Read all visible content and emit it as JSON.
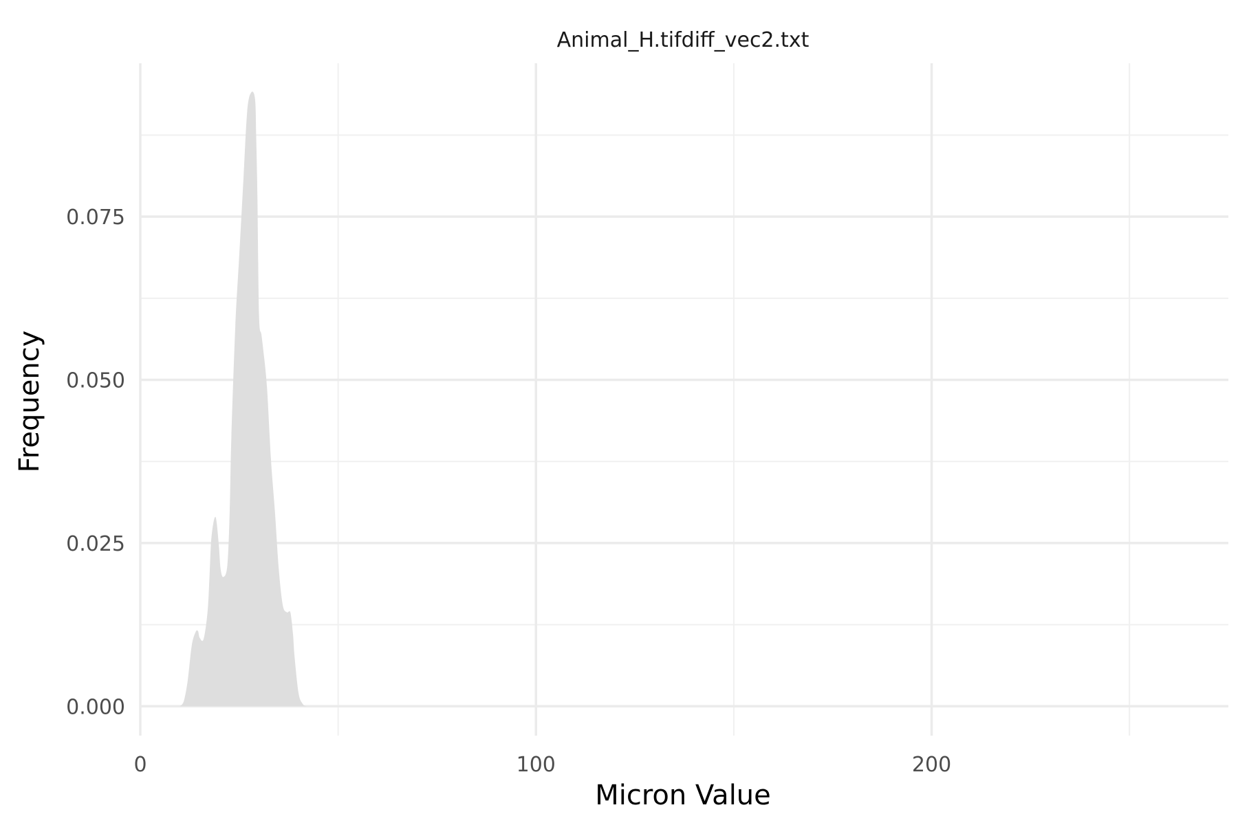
{
  "chart_data": {
    "type": "area",
    "title": "Animal_H.tifdiff_vec2.txt",
    "xlabel": "Micron Value",
    "ylabel": "Frequency",
    "xlim": [
      0,
      275
    ],
    "ylim": [
      -0.0045,
      0.0985
    ],
    "x_ticks": [
      0,
      100,
      200
    ],
    "x_tick_labels": [
      "0",
      "100",
      "200"
    ],
    "x_minor_ticks": [
      50,
      150,
      250
    ],
    "y_ticks": [
      0.0,
      0.025,
      0.05,
      0.075
    ],
    "y_tick_labels": [
      "0.000",
      "0.025",
      "0.050",
      "0.075"
    ],
    "y_minor_ticks": [
      0.0125,
      0.0375,
      0.0625,
      0.0875
    ],
    "grid": true,
    "fill_color": "#dedede",
    "series": [
      {
        "x": [
          10,
          11,
          12,
          13,
          14,
          14.6,
          15,
          16,
          17,
          17.5,
          18,
          19,
          19.8,
          20.3,
          21,
          22,
          22.6,
          23,
          24,
          25,
          26,
          27,
          28,
          29,
          29.3,
          29.6,
          30,
          30.6,
          31,
          32,
          33,
          34,
          35,
          36,
          37,
          37.5,
          38,
          38.6,
          39,
          40,
          41,
          42,
          43
        ],
        "y": [
          0.0,
          0.0008,
          0.004,
          0.0093,
          0.0114,
          0.0115,
          0.0105,
          0.0103,
          0.0145,
          0.02,
          0.026,
          0.029,
          0.025,
          0.021,
          0.0198,
          0.0216,
          0.03,
          0.041,
          0.058,
          0.069,
          0.08,
          0.091,
          0.094,
          0.093,
          0.087,
          0.078,
          0.06,
          0.057,
          0.055,
          0.049,
          0.038,
          0.03,
          0.021,
          0.0155,
          0.0144,
          0.0145,
          0.0142,
          0.011,
          0.0075,
          0.002,
          0.0004,
          0.0,
          0.0
        ]
      }
    ]
  }
}
